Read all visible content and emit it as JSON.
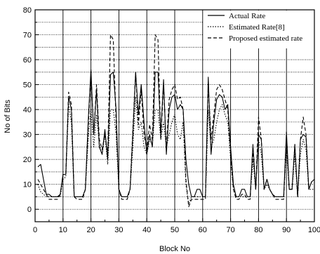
{
  "chart_data": {
    "type": "line",
    "title": "",
    "xlabel": "Block No",
    "ylabel": "No of Bits",
    "xlim": [
      0,
      100
    ],
    "ylim": [
      -5,
      80
    ],
    "x_ticks": [
      0,
      10,
      20,
      30,
      40,
      50,
      60,
      70,
      80,
      90,
      100
    ],
    "y_ticks": [
      0,
      10,
      20,
      30,
      40,
      50,
      60,
      70,
      80
    ],
    "grid": true,
    "legend_position": "top-right",
    "series": [
      {
        "name": "Actual Rate",
        "style": "solid",
        "x": [
          1,
          2,
          3,
          4,
          5,
          6,
          7,
          8,
          9,
          10,
          11,
          12,
          13,
          14,
          15,
          16,
          17,
          18,
          19,
          20,
          21,
          22,
          23,
          24,
          25,
          26,
          27,
          28,
          29,
          30,
          31,
          32,
          33,
          34,
          35,
          36,
          37,
          38,
          39,
          40,
          41,
          42,
          43,
          44,
          45,
          46,
          47,
          48,
          49,
          50,
          51,
          52,
          53,
          54,
          55,
          56,
          57,
          58,
          59,
          60,
          61,
          62,
          63,
          64,
          65,
          66,
          67,
          68,
          69,
          70,
          71,
          72,
          73,
          74,
          75,
          76,
          77,
          78,
          79,
          80,
          81,
          82,
          83,
          84,
          85,
          86,
          87,
          88,
          89,
          90,
          91,
          92,
          93,
          94,
          95,
          96,
          97,
          98,
          99,
          100
        ],
        "values": [
          17,
          18,
          12,
          6,
          6,
          5,
          5,
          5,
          6,
          14,
          14,
          45,
          40,
          5,
          5,
          5,
          5,
          8,
          35,
          56,
          30,
          48,
          25,
          22,
          32,
          20,
          54,
          55,
          40,
          8,
          5,
          5,
          5,
          8,
          30,
          55,
          38,
          50,
          35,
          22,
          30,
          25,
          55,
          55,
          30,
          52,
          22,
          40,
          45,
          46,
          40,
          42,
          40,
          20,
          10,
          5,
          5,
          8,
          8,
          5,
          5,
          53,
          22,
          35,
          44,
          46,
          45,
          40,
          42,
          25,
          10,
          5,
          5,
          8,
          8,
          5,
          5,
          26,
          8,
          30,
          28,
          8,
          12,
          8,
          6,
          5,
          5,
          5,
          5,
          31,
          8,
          8,
          26,
          5,
          28,
          30,
          29,
          8,
          11,
          12
        ]
      },
      {
        "name": "Estimated Rate[8]",
        "style": "dotted",
        "x": [
          1,
          2,
          3,
          4,
          5,
          6,
          7,
          8,
          9,
          10,
          11,
          12,
          13,
          14,
          15,
          16,
          17,
          18,
          19,
          20,
          21,
          22,
          23,
          24,
          25,
          26,
          27,
          28,
          29,
          30,
          31,
          32,
          33,
          34,
          35,
          36,
          37,
          38,
          39,
          40,
          41,
          42,
          43,
          44,
          45,
          46,
          47,
          48,
          49,
          50,
          51,
          52,
          53,
          54,
          55,
          56,
          57,
          58,
          59,
          60,
          61,
          62,
          63,
          64,
          65,
          66,
          67,
          68,
          69,
          70,
          71,
          72,
          73,
          74,
          75,
          76,
          77,
          78,
          79,
          80,
          81,
          82,
          83,
          84,
          85,
          86,
          87,
          88,
          89,
          90,
          91,
          92,
          93,
          94,
          95,
          96,
          97,
          98,
          99,
          100
        ],
        "values": [
          10,
          7,
          6,
          5,
          5,
          5,
          5,
          5,
          5,
          12,
          13,
          42,
          35,
          5,
          5,
          5,
          5,
          8,
          28,
          40,
          25,
          38,
          26,
          22,
          30,
          18,
          40,
          40,
          30,
          8,
          5,
          5,
          5,
          8,
          25,
          45,
          32,
          35,
          25,
          22,
          28,
          26,
          40,
          40,
          28,
          35,
          25,
          30,
          35,
          38,
          30,
          28,
          35,
          10,
          2,
          5,
          5,
          5,
          5,
          5,
          5,
          40,
          25,
          28,
          35,
          40,
          42,
          38,
          35,
          20,
          8,
          5,
          5,
          5,
          5,
          5,
          5,
          20,
          8,
          28,
          22,
          8,
          10,
          8,
          6,
          5,
          5,
          5,
          5,
          25,
          8,
          8,
          22,
          5,
          22,
          28,
          24,
          8,
          8,
          8
        ]
      },
      {
        "name": "Proposed estimated rate",
        "style": "dashed",
        "x": [
          1,
          2,
          3,
          4,
          5,
          6,
          7,
          8,
          9,
          10,
          11,
          12,
          13,
          14,
          15,
          16,
          17,
          18,
          19,
          20,
          21,
          22,
          23,
          24,
          25,
          26,
          27,
          28,
          29,
          30,
          31,
          32,
          33,
          34,
          35,
          36,
          37,
          38,
          39,
          40,
          41,
          42,
          43,
          44,
          45,
          46,
          47,
          48,
          49,
          50,
          51,
          52,
          53,
          54,
          55,
          56,
          57,
          58,
          59,
          60,
          61,
          62,
          63,
          64,
          65,
          66,
          67,
          68,
          69,
          70,
          71,
          72,
          73,
          74,
          75,
          76,
          77,
          78,
          79,
          80,
          81,
          82,
          83,
          84,
          85,
          86,
          87,
          88,
          89,
          90,
          91,
          92,
          93,
          94,
          95,
          96,
          97,
          98,
          99,
          100
        ],
        "values": [
          12,
          10,
          8,
          6,
          4,
          4,
          4,
          4,
          6,
          14,
          14,
          47,
          42,
          5,
          4,
          4,
          4,
          8,
          32,
          55,
          30,
          50,
          28,
          24,
          30,
          22,
          70,
          68,
          35,
          8,
          4,
          4,
          4,
          8,
          32,
          55,
          34,
          48,
          30,
          24,
          34,
          28,
          70,
          68,
          28,
          50,
          24,
          44,
          48,
          50,
          44,
          45,
          40,
          12,
          1,
          4,
          4,
          4,
          4,
          4,
          4,
          50,
          28,
          38,
          48,
          50,
          48,
          44,
          40,
          22,
          8,
          4,
          4,
          6,
          6,
          4,
          4,
          24,
          8,
          37,
          28,
          8,
          12,
          8,
          6,
          4,
          4,
          4,
          4,
          28,
          8,
          8,
          26,
          5,
          28,
          37,
          30,
          8,
          11,
          12
        ]
      }
    ]
  }
}
